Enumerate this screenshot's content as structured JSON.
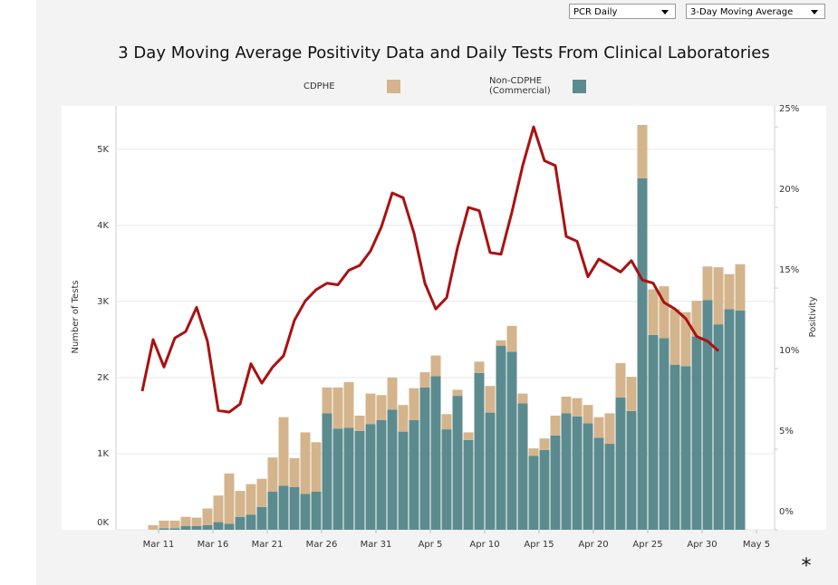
{
  "controls": {
    "measure": "PCR Daily",
    "average": "3-Day Moving Average"
  },
  "footnote": "*",
  "chart_data": {
    "type": "stacked-bar-line",
    "title": "3 Day Moving Average Positivity Data and Daily Tests From Clinical Laboratories",
    "ylabel": "Number of Tests",
    "y2label": "Positivity",
    "categories": [
      "Mar 10",
      "Mar 11",
      "Mar 12",
      "Mar 13",
      "Mar 14",
      "Mar 15",
      "Mar 16",
      "Mar 17",
      "Mar 18",
      "Mar 19",
      "Mar 20",
      "Mar 21",
      "Mar 22",
      "Mar 23",
      "Mar 24",
      "Mar 25",
      "Mar 26",
      "Mar 27",
      "Mar 28",
      "Mar 29",
      "Mar 30",
      "Mar 31",
      "Apr 1",
      "Apr 2",
      "Apr 3",
      "Apr 4",
      "Apr 5",
      "Apr 6",
      "Apr 7",
      "Apr 8",
      "Apr 9",
      "Apr 10",
      "Apr 11",
      "Apr 12",
      "Apr 13",
      "Apr 14",
      "Apr 15",
      "Apr 16",
      "Apr 17",
      "Apr 18",
      "Apr 19",
      "Apr 20",
      "Apr 21",
      "Apr 22",
      "Apr 23",
      "Apr 24",
      "Apr 25",
      "Apr 26",
      "Apr 27",
      "Apr 28",
      "Apr 29",
      "Apr 30",
      "May 1",
      "May 2",
      "May 3",
      "May 4",
      "May 5"
    ],
    "xticks": [
      "Mar 11",
      "Mar 16",
      "Mar 21",
      "Mar 26",
      "Mar 31",
      "Apr 5",
      "Apr 10",
      "Apr 15",
      "Apr 20",
      "Apr 25",
      "Apr 30",
      "May 5"
    ],
    "ylim": [
      0,
      5570
    ],
    "yticks": [
      {
        "value": 0,
        "label": "0K"
      },
      {
        "value": 1000,
        "label": "1K"
      },
      {
        "value": 2000,
        "label": "2K"
      },
      {
        "value": 3000,
        "label": "3K"
      },
      {
        "value": 4000,
        "label": "4K"
      },
      {
        "value": 5000,
        "label": "5K"
      }
    ],
    "y2lim": [
      0,
      26.3
    ],
    "y2ticks": [
      {
        "value": 0,
        "label": "0%"
      },
      {
        "value": 5,
        "label": "5%"
      },
      {
        "value": 10,
        "label": "10%"
      },
      {
        "value": 15,
        "label": "15%"
      },
      {
        "value": 20,
        "label": "20%"
      },
      {
        "value": 25,
        "label": "25%"
      }
    ],
    "grid": true,
    "series": [
      {
        "name": "Non-CDPHE (Commercial)",
        "type": "bar",
        "color": "#5b8b8e",
        "values": [
          0,
          20,
          20,
          50,
          50,
          60,
          100,
          80,
          170,
          200,
          300,
          500,
          580,
          560,
          470,
          500,
          1530,
          1330,
          1340,
          1300,
          1390,
          1440,
          1580,
          1290,
          1440,
          1870,
          2020,
          1320,
          1760,
          1180,
          2060,
          1540,
          2420,
          2340,
          1660,
          970,
          1050,
          1240,
          1530,
          1490,
          1400,
          1210,
          1130,
          1740,
          1560,
          4620,
          2560,
          2520,
          2170,
          2150,
          2540,
          3020,
          2700,
          2900,
          2880,
          null,
          null
        ]
      },
      {
        "name": "CDPHE",
        "type": "bar",
        "color": "#d4b48c",
        "values": [
          60,
          100,
          100,
          120,
          110,
          220,
          350,
          660,
          340,
          400,
          370,
          450,
          900,
          380,
          810,
          650,
          340,
          540,
          600,
          200,
          400,
          330,
          420,
          350,
          420,
          200,
          270,
          200,
          80,
          100,
          150,
          350,
          70,
          340,
          130,
          100,
          150,
          260,
          220,
          240,
          240,
          270,
          400,
          450,
          450,
          700,
          600,
          680,
          730,
          710,
          470,
          440,
          750,
          460,
          610,
          null,
          null
        ]
      },
      {
        "name": "Positivity",
        "type": "line",
        "axis": "y2",
        "color": "#aa1111",
        "values": [
          8.6,
          11.8,
          10.1,
          11.9,
          12.3,
          13.8,
          11.7,
          7.4,
          7.3,
          7.8,
          10.3,
          9.1,
          10.1,
          10.8,
          13.0,
          14.2,
          14.9,
          15.3,
          15.2,
          16.1,
          16.4,
          17.3,
          18.8,
          20.9,
          20.6,
          18.4,
          15.3,
          13.7,
          14.4,
          17.5,
          20.0,
          19.8,
          17.2,
          17.1,
          19.7,
          22.6,
          25.0,
          22.9,
          22.6,
          18.2,
          17.9,
          15.7,
          16.8,
          16.4,
          16.0,
          16.7,
          15.5,
          15.3,
          14.1,
          13.7,
          13.1,
          12.0,
          11.7,
          11.1,
          null,
          null,
          null
        ]
      }
    ]
  }
}
